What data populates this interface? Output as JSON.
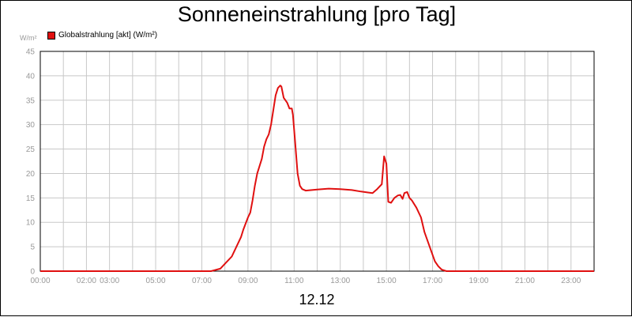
{
  "chart_data": {
    "type": "line",
    "title": "Sonneneinstrahlung [pro Tag]",
    "y_unit": "W/m²",
    "footer": "12.12",
    "series": [
      {
        "name": "Globalstrahlung [akt] (W/m²)",
        "color": "#e01010",
        "points": [
          [
            0,
            0
          ],
          [
            7.4,
            0
          ],
          [
            7.8,
            0.5
          ],
          [
            8.0,
            1.5
          ],
          [
            8.3,
            3
          ],
          [
            8.5,
            5
          ],
          [
            8.7,
            7
          ],
          [
            8.8,
            8.5
          ],
          [
            9.0,
            11
          ],
          [
            9.1,
            12
          ],
          [
            9.2,
            14.5
          ],
          [
            9.3,
            17.5
          ],
          [
            9.4,
            20
          ],
          [
            9.5,
            21.5
          ],
          [
            9.6,
            23
          ],
          [
            9.7,
            25.5
          ],
          [
            9.8,
            27
          ],
          [
            9.9,
            28
          ],
          [
            10.0,
            30
          ],
          [
            10.1,
            33
          ],
          [
            10.2,
            36
          ],
          [
            10.3,
            37.5
          ],
          [
            10.4,
            38
          ],
          [
            10.45,
            37.8
          ],
          [
            10.55,
            35.5
          ],
          [
            10.7,
            34.5
          ],
          [
            10.8,
            33.3
          ],
          [
            10.9,
            33.3
          ],
          [
            10.95,
            32
          ],
          [
            11.05,
            26
          ],
          [
            11.15,
            20
          ],
          [
            11.25,
            17.5
          ],
          [
            11.35,
            16.8
          ],
          [
            11.5,
            16.5
          ],
          [
            12.0,
            16.7
          ],
          [
            12.5,
            16.9
          ],
          [
            13.0,
            16.8
          ],
          [
            13.5,
            16.6
          ],
          [
            13.9,
            16.3
          ],
          [
            14.2,
            16.1
          ],
          [
            14.4,
            16.0
          ],
          [
            14.6,
            16.8
          ],
          [
            14.8,
            17.8
          ],
          [
            14.9,
            23.5
          ],
          [
            15.0,
            22
          ],
          [
            15.08,
            14.2
          ],
          [
            15.2,
            14
          ],
          [
            15.35,
            15
          ],
          [
            15.5,
            15.5
          ],
          [
            15.6,
            15.6
          ],
          [
            15.7,
            14.8
          ],
          [
            15.78,
            16
          ],
          [
            15.9,
            16.2
          ],
          [
            16.0,
            15
          ],
          [
            16.1,
            14.5
          ],
          [
            16.3,
            13
          ],
          [
            16.5,
            11
          ],
          [
            16.65,
            8
          ],
          [
            16.8,
            6
          ],
          [
            16.95,
            4
          ],
          [
            17.1,
            2
          ],
          [
            17.25,
            1
          ],
          [
            17.4,
            0.3
          ],
          [
            17.6,
            0
          ],
          [
            24,
            0
          ]
        ]
      }
    ],
    "x_range": [
      0,
      24
    ],
    "ylim": [
      0,
      45
    ],
    "y_ticks": [
      0,
      5,
      10,
      15,
      20,
      25,
      30,
      35,
      40,
      45
    ],
    "x_ticks": [
      {
        "value": 0,
        "label": "00:00"
      },
      {
        "value": 2,
        "label": "02:00"
      },
      {
        "value": 3,
        "label": "03:00"
      },
      {
        "value": 5,
        "label": "05:00"
      },
      {
        "value": 7,
        "label": "07:00"
      },
      {
        "value": 9,
        "label": "09:00"
      },
      {
        "value": 11,
        "label": "11:00"
      },
      {
        "value": 13,
        "label": "13:00"
      },
      {
        "value": 15,
        "label": "15:00"
      },
      {
        "value": 17,
        "label": "17:00"
      },
      {
        "value": 19,
        "label": "19:00"
      },
      {
        "value": 21,
        "label": "21:00"
      },
      {
        "value": 23,
        "label": "23:00"
      }
    ],
    "x_grid": [
      0,
      1,
      2,
      3,
      4,
      5,
      6,
      7,
      8,
      9,
      10,
      11,
      12,
      13,
      14,
      15,
      16,
      17,
      18,
      19,
      20,
      21,
      22,
      23,
      24
    ],
    "grid": true,
    "legend_position": "top-left"
  }
}
